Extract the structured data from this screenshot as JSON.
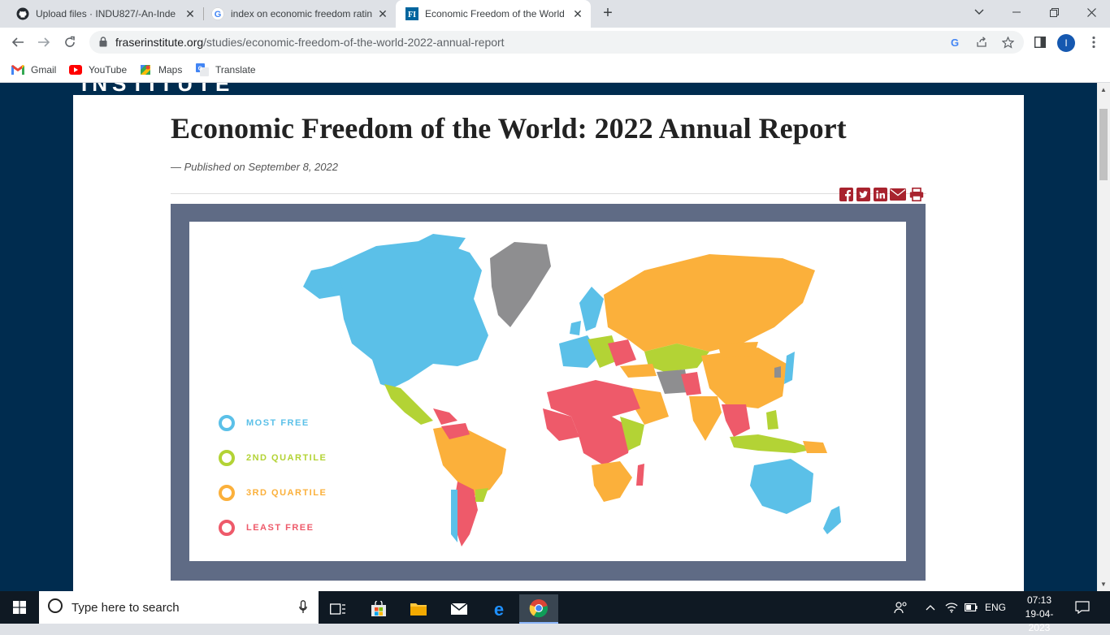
{
  "browser": {
    "tabs": [
      {
        "title": "Upload files · INDU827/-An-Inde",
        "icon": "github-icon"
      },
      {
        "title": "index on economic freedom ratin",
        "icon": "google-icon"
      },
      {
        "title": "Economic Freedom of the World",
        "icon": "fraser-institute-icon",
        "active": true
      }
    ],
    "new_tab": "+",
    "url_domain": "fraserinstitute.org",
    "url_path": "/studies/economic-freedom-of-the-world-2022-annual-report",
    "profile_initial": "I",
    "bookmarks": [
      {
        "label": "Gmail",
        "icon": "gmail-icon"
      },
      {
        "label": "YouTube",
        "icon": "youtube-icon"
      },
      {
        "label": "Maps",
        "icon": "maps-icon"
      },
      {
        "label": "Translate",
        "icon": "translate-icon"
      }
    ]
  },
  "page": {
    "header_fragment": "INSTITUTE",
    "title": "Economic Freedom of the World: 2022 Annual Report",
    "published": "— Published on September 8, 2022",
    "share_icons": [
      "facebook-icon",
      "twitter-icon",
      "linkedin-icon",
      "email-icon",
      "print-icon"
    ],
    "map": {
      "legend": [
        {
          "label": "MOST FREE",
          "color": "#5bc0e8"
        },
        {
          "label": "2ND QUARTILE",
          "color": "#b3d335"
        },
        {
          "label": "3RD QUARTILE",
          "color": "#fbb03b"
        },
        {
          "label": "LEAST FREE",
          "color": "#ee5a6a"
        }
      ],
      "no_data_color": "#8e8e90",
      "frame_color": "#5f6b85"
    }
  },
  "taskbar": {
    "search_placeholder": "Type here to search",
    "language": "ENG",
    "time": "07:13",
    "date": "19-04-2023"
  }
}
